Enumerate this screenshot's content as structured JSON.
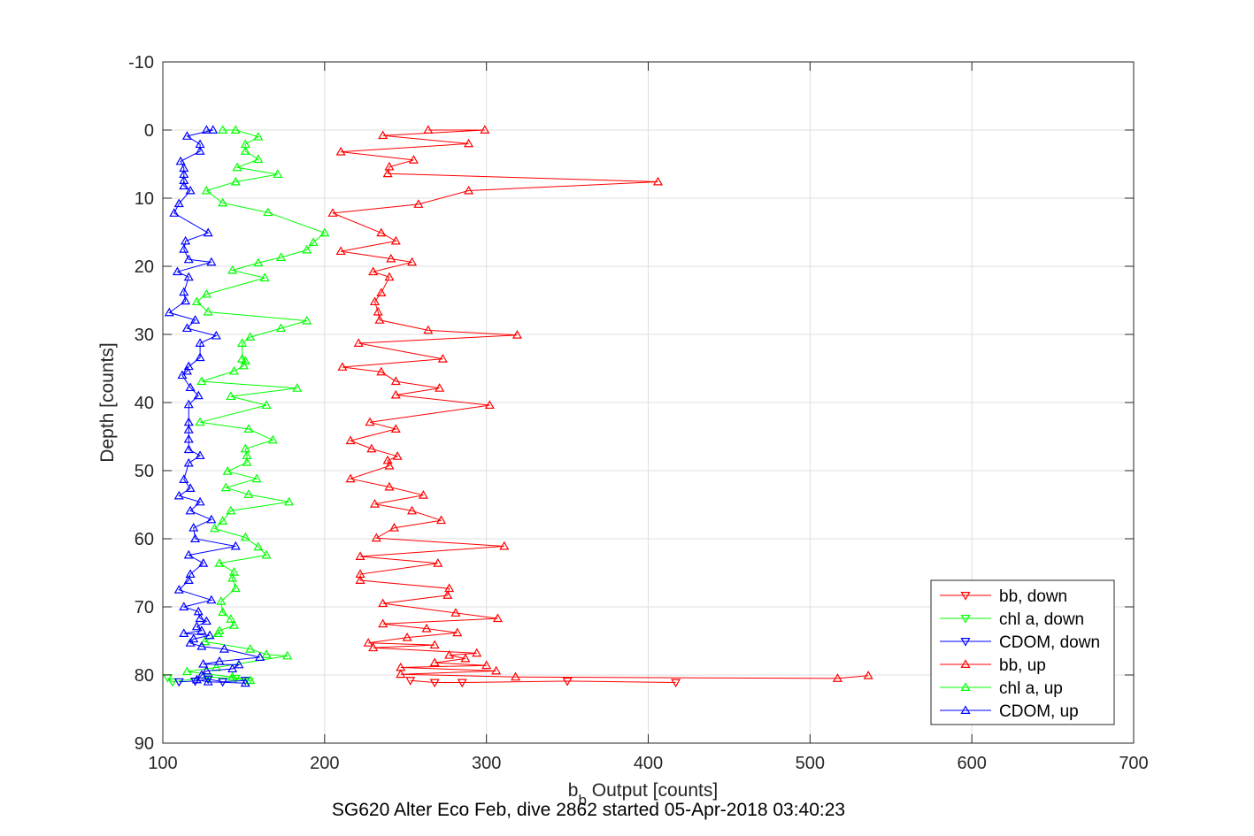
{
  "caption": "SG620 Alter Eco Feb, dive 2862 started 05-Apr-2018 03:40:23",
  "chart_data": {
    "type": "line",
    "title": "",
    "xlabel_main": "b",
    "xlabel_sub": "b",
    "xlabel_rest": " Output [counts]",
    "ylabel": "Depth [counts]",
    "xlim": [
      100,
      700
    ],
    "ylim": [
      -10,
      90
    ],
    "y_reversed": true,
    "grid": true,
    "xticks": [
      100,
      200,
      300,
      400,
      500,
      600,
      700
    ],
    "yticks": [
      -10,
      0,
      10,
      20,
      30,
      40,
      50,
      60,
      70,
      80,
      90
    ],
    "legend_position": "bottom-right",
    "series": [
      {
        "name": "bb, down",
        "color": "#ff0000",
        "marker": "triangle-down",
        "points": [
          [
            253,
            80.8
          ],
          [
            268,
            81.1
          ],
          [
            285,
            81.1
          ],
          [
            350,
            80.9
          ],
          [
            417,
            81.1
          ]
        ]
      },
      {
        "name": "chl a, down",
        "color": "#00ff00",
        "marker": "triangle-down",
        "points": [
          [
            103,
            80.4
          ],
          [
            106,
            81.0
          ],
          [
            128,
            80.3
          ],
          [
            145,
            80.5
          ],
          [
            153,
            80.9
          ]
        ]
      },
      {
        "name": "CDOM, down",
        "color": "#0000ff",
        "marker": "triangle-down",
        "points": [
          [
            110,
            81.0
          ],
          [
            120,
            80.9
          ],
          [
            128,
            80.6
          ],
          [
            137,
            81.0
          ],
          [
            151,
            80.8
          ]
        ]
      },
      {
        "name": "bb, up",
        "color": "#ff0000",
        "marker": "triangle-up",
        "points": [
          [
            264,
            0
          ],
          [
            299,
            0
          ],
          [
            236,
            0.8
          ],
          [
            289,
            2
          ],
          [
            210,
            3.2
          ],
          [
            255,
            4.4
          ],
          [
            240,
            5.4
          ],
          [
            239,
            6.4
          ],
          [
            406,
            7.6
          ],
          [
            289,
            8.9
          ],
          [
            258,
            10.9
          ],
          [
            205,
            12.2
          ],
          [
            235,
            15.1
          ],
          [
            244,
            16.3
          ],
          [
            210,
            17.8
          ],
          [
            241,
            18.9
          ],
          [
            254,
            19.4
          ],
          [
            230,
            20.8
          ],
          [
            240,
            21.6
          ],
          [
            235,
            23.9
          ],
          [
            231,
            25.2
          ],
          [
            233,
            26.7
          ],
          [
            234,
            27.9
          ],
          [
            264,
            29.4
          ],
          [
            319,
            30.1
          ],
          [
            221,
            31.3
          ],
          [
            273,
            33.6
          ],
          [
            211,
            34.8
          ],
          [
            235,
            35.5
          ],
          [
            244,
            36.9
          ],
          [
            271,
            37.9
          ],
          [
            244,
            38.9
          ],
          [
            302,
            40.4
          ],
          [
            228,
            42.9
          ],
          [
            244,
            43.9
          ],
          [
            216,
            45.6
          ],
          [
            229,
            46.8
          ],
          [
            245,
            47.9
          ],
          [
            239,
            48.5
          ],
          [
            240,
            49.3
          ],
          [
            216,
            51.2
          ],
          [
            240,
            52.4
          ],
          [
            261,
            53.6
          ],
          [
            231,
            54.9
          ],
          [
            254,
            55.9
          ],
          [
            272,
            57.3
          ],
          [
            243,
            58.4
          ],
          [
            232,
            59.9
          ],
          [
            311,
            61.1
          ],
          [
            222,
            62.6
          ],
          [
            270,
            63.6
          ],
          [
            222,
            65.2
          ],
          [
            222,
            66.1
          ],
          [
            277,
            67.3
          ],
          [
            276,
            68.3
          ],
          [
            236,
            69.5
          ],
          [
            281,
            70.9
          ],
          [
            307,
            71.7
          ],
          [
            236,
            72.5
          ],
          [
            263,
            73.2
          ],
          [
            282,
            73.8
          ],
          [
            251,
            74.5
          ],
          [
            227,
            75.3
          ],
          [
            268,
            75.6
          ],
          [
            230,
            76.0
          ],
          [
            294,
            76.8
          ],
          [
            277,
            77.1
          ],
          [
            287,
            77.6
          ],
          [
            268,
            78.2
          ],
          [
            300,
            78.6
          ],
          [
            247,
            78.9
          ],
          [
            306,
            79.4
          ],
          [
            247,
            79.9
          ],
          [
            318,
            80.3
          ],
          [
            517,
            80.5
          ],
          [
            536,
            80.1
          ]
        ]
      },
      {
        "name": "chl a, up",
        "color": "#00ff00",
        "marker": "triangle-up",
        "points": [
          [
            137,
            0
          ],
          [
            145,
            0
          ],
          [
            159,
            1.0
          ],
          [
            151,
            2.1
          ],
          [
            151,
            3.1
          ],
          [
            159,
            4.3
          ],
          [
            146,
            5.5
          ],
          [
            171,
            6.5
          ],
          [
            145,
            7.6
          ],
          [
            127,
            8.9
          ],
          [
            137,
            10.7
          ],
          [
            165,
            12.1
          ],
          [
            200,
            15.1
          ],
          [
            193,
            16.5
          ],
          [
            189,
            17.6
          ],
          [
            173,
            18.7
          ],
          [
            159,
            19.5
          ],
          [
            143,
            20.6
          ],
          [
            163,
            21.7
          ],
          [
            127,
            24.1
          ],
          [
            121,
            25.2
          ],
          [
            128,
            26.7
          ],
          [
            189,
            28.0
          ],
          [
            173,
            29.1
          ],
          [
            154,
            30.4
          ],
          [
            149,
            31.3
          ],
          [
            149,
            33.6
          ],
          [
            151,
            33.9
          ],
          [
            150,
            34.6
          ],
          [
            144,
            35.4
          ],
          [
            124,
            36.9
          ],
          [
            183,
            37.9
          ],
          [
            142,
            39.1
          ],
          [
            164,
            40.4
          ],
          [
            123,
            42.9
          ],
          [
            153,
            43.9
          ],
          [
            168,
            45.5
          ],
          [
            151,
            46.8
          ],
          [
            152,
            47.8
          ],
          [
            152,
            48.8
          ],
          [
            140,
            50.1
          ],
          [
            158,
            51.2
          ],
          [
            139,
            52.5
          ],
          [
            153,
            53.5
          ],
          [
            178,
            54.6
          ],
          [
            142,
            55.9
          ],
          [
            137,
            57.4
          ],
          [
            132,
            58.5
          ],
          [
            151,
            59.8
          ],
          [
            159,
            61.2
          ],
          [
            164,
            62.4
          ],
          [
            135,
            63.6
          ],
          [
            144,
            64.9
          ],
          [
            143,
            65.8
          ],
          [
            145,
            67.3
          ],
          [
            136,
            69.2
          ],
          [
            137,
            70.8
          ],
          [
            142,
            71.8
          ],
          [
            144,
            72.7
          ],
          [
            135,
            73.5
          ],
          [
            134,
            73.9
          ],
          [
            126,
            75.1
          ],
          [
            154,
            76.2
          ],
          [
            164,
            77.0
          ],
          [
            177,
            77.2
          ],
          [
            133,
            78.9
          ],
          [
            115,
            79.5
          ],
          [
            143,
            80.3
          ],
          [
            154,
            80.8
          ]
        ]
      },
      {
        "name": "CDOM, up",
        "color": "#0000ff",
        "marker": "triangle-up",
        "points": [
          [
            127,
            0
          ],
          [
            131,
            0
          ],
          [
            115,
            0.9
          ],
          [
            123,
            2.1
          ],
          [
            123,
            3.1
          ],
          [
            111,
            4.6
          ],
          [
            113,
            5.6
          ],
          [
            113,
            6.5
          ],
          [
            113,
            7.4
          ],
          [
            113,
            8.2
          ],
          [
            117,
            8.9
          ],
          [
            110,
            10.8
          ],
          [
            107,
            12.2
          ],
          [
            128,
            15.1
          ],
          [
            114,
            16.3
          ],
          [
            113,
            17.5
          ],
          [
            116,
            19.0
          ],
          [
            130,
            19.4
          ],
          [
            109,
            20.8
          ],
          [
            116,
            21.6
          ],
          [
            113,
            23.8
          ],
          [
            114,
            25.1
          ],
          [
            104,
            26.8
          ],
          [
            120,
            27.9
          ],
          [
            115,
            29.1
          ],
          [
            133,
            30.2
          ],
          [
            123,
            31.3
          ],
          [
            123,
            33.4
          ],
          [
            116,
            34.7
          ],
          [
            115,
            35.4
          ],
          [
            112,
            36.0
          ],
          [
            117,
            37.8
          ],
          [
            122,
            39.0
          ],
          [
            116,
            40.3
          ],
          [
            116,
            42.9
          ],
          [
            116,
            44.0
          ],
          [
            116,
            45.4
          ],
          [
            116,
            46.9
          ],
          [
            123,
            47.8
          ],
          [
            116,
            48.9
          ],
          [
            113,
            51.3
          ],
          [
            117,
            52.6
          ],
          [
            110,
            53.7
          ],
          [
            123,
            54.6
          ],
          [
            117,
            55.9
          ],
          [
            130,
            57.2
          ],
          [
            119,
            58.4
          ],
          [
            120,
            60.0
          ],
          [
            145,
            61.1
          ],
          [
            116,
            62.4
          ],
          [
            125,
            63.6
          ],
          [
            117,
            65.2
          ],
          [
            116,
            66.1
          ],
          [
            110,
            67.5
          ],
          [
            130,
            69.0
          ],
          [
            113,
            70.0
          ],
          [
            122,
            70.7
          ],
          [
            123,
            71.7
          ],
          [
            127,
            72.1
          ],
          [
            121,
            72.9
          ],
          [
            124,
            73.5
          ],
          [
            113,
            73.9
          ],
          [
            129,
            74.2
          ],
          [
            119,
            74.7
          ],
          [
            117,
            75.3
          ],
          [
            124,
            75.8
          ],
          [
            138,
            76.2
          ],
          [
            160,
            77.4
          ],
          [
            135,
            78.0
          ],
          [
            125,
            78.4
          ],
          [
            147,
            78.5
          ],
          [
            143,
            79.1
          ],
          [
            127,
            79.4
          ],
          [
            124,
            80.0
          ],
          [
            121,
            80.7
          ],
          [
            128,
            81.0
          ],
          [
            151,
            81.2
          ]
        ]
      }
    ]
  }
}
